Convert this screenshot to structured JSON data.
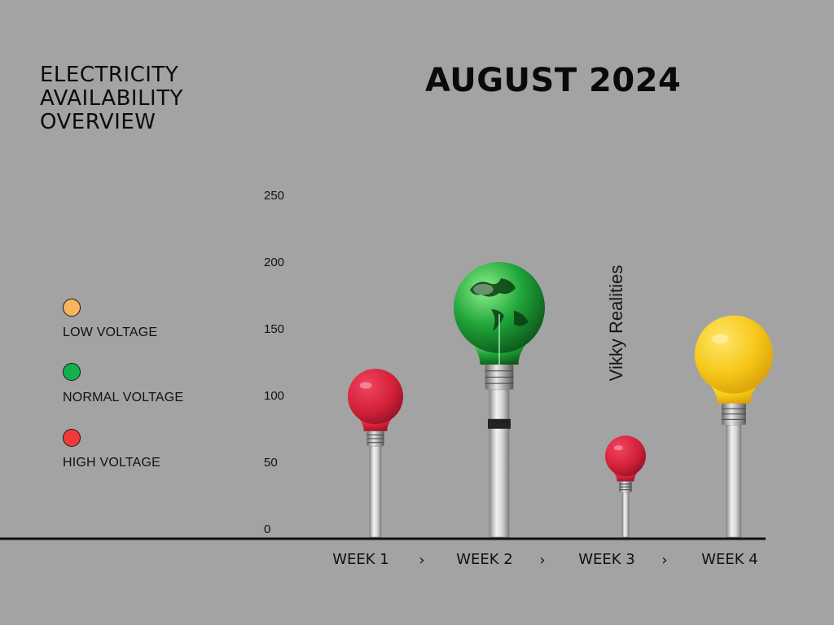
{
  "header": {
    "left_title_lines": [
      "ELECTRICITY",
      "AVAILABILITY",
      "OVERVIEW"
    ],
    "main_title": "AUGUST 2024"
  },
  "legend": [
    {
      "label": "LOW VOLTAGE",
      "color": "#f9b55e"
    },
    {
      "label": "NORMAL VOLTAGE",
      "color": "#13b14b"
    },
    {
      "label": "HIGH VOLTAGE",
      "color": "#f13a3a"
    }
  ],
  "watermark": "Vikky Realities",
  "chart_data": {
    "type": "bar",
    "title": "AUGUST 2024",
    "categories": [
      "WEEK 1",
      "WEEK 2",
      "WEEK 3",
      "WEEK 4"
    ],
    "values": [
      120,
      200,
      70,
      160
    ],
    "bar_colors": [
      "#d42038",
      "#1fa53a",
      "#d42038",
      "#f6c81a"
    ],
    "bar_kinds": [
      "red-bulb",
      "green-globe-bulb",
      "red-bulb",
      "yellow-bulb"
    ],
    "separator": "›",
    "yticks": [
      0,
      50,
      100,
      150,
      200,
      250
    ],
    "ylim": [
      0,
      250
    ],
    "xlabel": "",
    "ylabel": "",
    "grid": false,
    "legend_position": "left"
  }
}
